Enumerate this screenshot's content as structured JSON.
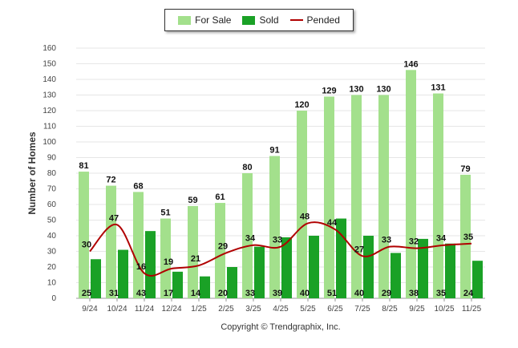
{
  "chart_data": {
    "type": "bar",
    "categories": [
      "9/24",
      "10/24",
      "11/24",
      "12/24",
      "1/25",
      "2/25",
      "3/25",
      "4/25",
      "5/25",
      "6/25",
      "7/25",
      "8/25",
      "9/25",
      "10/25",
      "11/25"
    ],
    "series": [
      {
        "name": "For Sale",
        "type": "bar",
        "color": "#a3e08c",
        "values": [
          81,
          72,
          68,
          51,
          59,
          61,
          80,
          91,
          120,
          129,
          130,
          130,
          146,
          131,
          79
        ]
      },
      {
        "name": "Sold",
        "type": "bar",
        "color": "#1aa126",
        "values": [
          25,
          31,
          43,
          17,
          14,
          20,
          33,
          39,
          40,
          51,
          40,
          29,
          38,
          35,
          24
        ]
      },
      {
        "name": "Pended",
        "type": "line",
        "color": "#b00000",
        "values": [
          30,
          47,
          16,
          19,
          21,
          29,
          34,
          33,
          48,
          44,
          27,
          33,
          32,
          34,
          35
        ]
      }
    ],
    "xlabel": "",
    "ylabel": "Number of Homes",
    "ylim": [
      0,
      160
    ],
    "yticks": [
      0,
      10,
      20,
      30,
      40,
      50,
      60,
      70,
      80,
      90,
      100,
      110,
      120,
      130,
      140,
      150,
      160
    ],
    "grid": true,
    "legend_position": "top-center"
  },
  "footer": {
    "copyright": "Copyright © Trendgraphix, Inc."
  }
}
